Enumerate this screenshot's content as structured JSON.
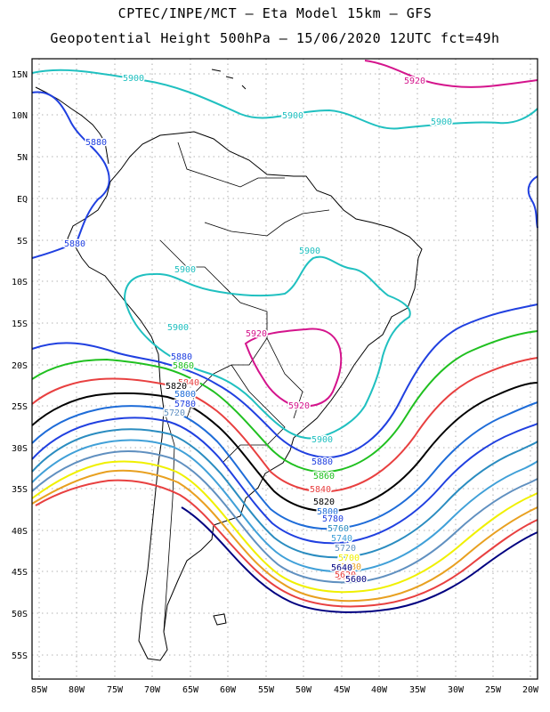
{
  "header": {
    "line1": "CPTEC/INPE/MCT –  Eta Model 15km – GFS",
    "line2": "Geopotential Height 500hPa – 15/06/2020 12UTC fct=49h"
  },
  "axes": {
    "lat_labels": [
      "15N",
      "10N",
      "5N",
      "EQ",
      "5S",
      "10S",
      "15S",
      "20S",
      "25S",
      "30S",
      "35S",
      "40S",
      "45S",
      "50S",
      "55S"
    ],
    "lon_labels": [
      "85W",
      "80W",
      "75W",
      "70W",
      "65W",
      "60W",
      "55W",
      "50W",
      "45W",
      "40W",
      "35W",
      "30W",
      "25W",
      "20W"
    ]
  },
  "contour_colors": {
    "5920": "#d4148c",
    "5900": "#20c0c0",
    "5880": "#2040e0",
    "5860": "#20c020",
    "5840": "#e84040",
    "5820": "#000000",
    "5800": "#1e6cd8",
    "5780": "#2040e0",
    "5760": "#2a8cc0",
    "5740": "#40a0d8",
    "5720": "#6090c0",
    "5700": "#f0f000",
    "5680": "#e8a020",
    "5660": "#e84040",
    "5640": "#000080",
    "5620": "#e84040",
    "5600": "#000080"
  },
  "contour_labels": [
    {
      "text": "5920",
      "level": "5920"
    },
    {
      "text": "5900",
      "level": "5900"
    },
    {
      "text": "5900",
      "level": "5900"
    },
    {
      "text": "5900",
      "level": "5900"
    },
    {
      "text": "5880",
      "level": "5880"
    },
    {
      "text": "5880",
      "level": "5880"
    },
    {
      "text": "5900",
      "level": "5900"
    },
    {
      "text": "5900",
      "level": "5900"
    },
    {
      "text": "5900",
      "level": "5900"
    },
    {
      "text": "5920",
      "level": "5920"
    },
    {
      "text": "5920",
      "level": "5920"
    },
    {
      "text": "5880",
      "level": "5880"
    },
    {
      "text": "5860",
      "level": "5860"
    },
    {
      "text": "5840",
      "level": "5840"
    },
    {
      "text": "5820",
      "level": "5820"
    },
    {
      "text": "5800",
      "level": "5800"
    },
    {
      "text": "5780",
      "level": "5780"
    },
    {
      "text": "5720",
      "level": "5720"
    },
    {
      "text": "5900",
      "level": "5900"
    },
    {
      "text": "5880",
      "level": "5880"
    },
    {
      "text": "5860",
      "level": "5860"
    },
    {
      "text": "5840",
      "level": "5840"
    },
    {
      "text": "5820",
      "level": "5820"
    },
    {
      "text": "5800",
      "level": "5800"
    },
    {
      "text": "5780",
      "level": "5780"
    },
    {
      "text": "5760",
      "level": "5760"
    },
    {
      "text": "5740",
      "level": "5740"
    },
    {
      "text": "5720",
      "level": "5720"
    },
    {
      "text": "5700",
      "level": "5700"
    },
    {
      "text": "5680",
      "level": "5680"
    },
    {
      "text": "5660",
      "level": "5660"
    },
    {
      "text": "5640",
      "level": "5640"
    },
    {
      "text": "5620",
      "level": "5620"
    },
    {
      "text": "5600",
      "level": "5600"
    }
  ]
}
